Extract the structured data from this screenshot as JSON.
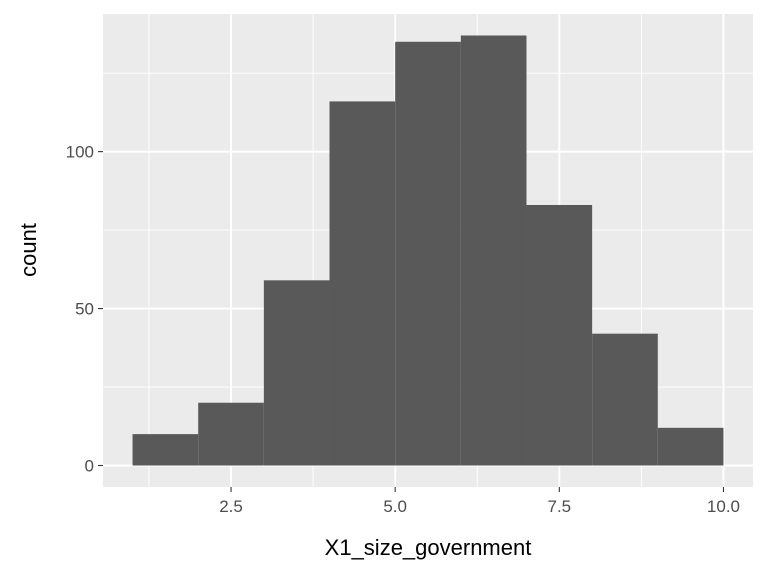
{
  "chart_data": {
    "type": "bar",
    "subtype": "histogram",
    "title": "",
    "xlabel": "X1_size_government",
    "ylabel": "count",
    "bins": [
      {
        "x0": 1,
        "x1": 2,
        "count": 10
      },
      {
        "x0": 2,
        "x1": 3,
        "count": 20
      },
      {
        "x0": 3,
        "x1": 4,
        "count": 59
      },
      {
        "x0": 4,
        "x1": 5,
        "count": 116
      },
      {
        "x0": 5,
        "x1": 6,
        "count": 135
      },
      {
        "x0": 6,
        "x1": 7,
        "count": 137
      },
      {
        "x0": 7,
        "x1": 8,
        "count": 83
      },
      {
        "x0": 8,
        "x1": 9,
        "count": 42
      },
      {
        "x0": 9,
        "x1": 10,
        "count": 12
      }
    ],
    "xlim": [
      0.55,
      10.45
    ],
    "ylim": [
      -6.85,
      143.85
    ],
    "x_ticks": [
      2.5,
      5.0,
      7.5,
      10.0
    ],
    "x_tick_labels": [
      "2.5",
      "5.0",
      "7.5",
      "10.0"
    ],
    "y_ticks": [
      0,
      50,
      100
    ],
    "y_tick_labels": [
      "0",
      "50",
      "100"
    ],
    "grid": true,
    "legend": "none",
    "colors": {
      "panel": "#ebebeb",
      "grid": "#ffffff",
      "bar": "#595959",
      "tick_text": "#4d4d4d",
      "axis_title": "#000000"
    }
  }
}
